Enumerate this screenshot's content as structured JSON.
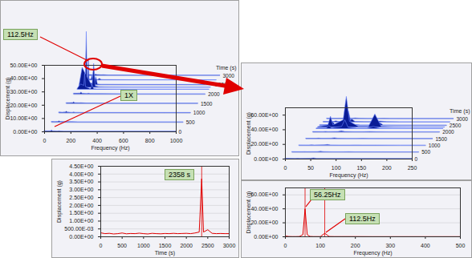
{
  "chart_data": [
    {
      "type": "waterfall",
      "x_label": "Frequency (Hz)",
      "y_label": "Displacement (g)",
      "time_label": "Time (s)",
      "color": "#0a1c96",
      "x": [
        0,
        25,
        50,
        56.25,
        62.5,
        100,
        112.5,
        125,
        150,
        200,
        400,
        600,
        800,
        1000
      ],
      "slices": [
        {
          "time": 3000,
          "values": [
            0.6,
            0.5,
            0.6,
            0.9,
            0.6,
            0.4,
            0.5,
            0.4,
            0.3,
            0.3,
            0.2,
            0.2,
            0.2,
            0.2
          ]
        },
        {
          "time": 2750,
          "values": [
            0.6,
            0.6,
            0.8,
            4,
            0.7,
            0.4,
            1.2,
            0.4,
            0.3,
            0.3,
            0.2,
            0.2,
            0.2,
            0.2
          ]
        },
        {
          "time": 2500,
          "values": [
            0.7,
            3,
            2,
            20,
            1.5,
            0.5,
            6,
            0.5,
            0.3,
            0.3,
            0.2,
            0.2,
            0.2,
            0.2
          ]
        },
        {
          "time": 2358,
          "values": [
            0.8,
            15,
            10,
            42,
            8,
            1,
            18,
            1,
            0.4,
            0.3,
            0.2,
            0.2,
            0.2,
            0.2
          ]
        },
        {
          "time": 2250,
          "values": [
            0.7,
            4,
            3,
            12,
            2,
            0.5,
            3,
            0.5,
            0.3,
            0.3,
            0.2,
            0.2,
            0.2,
            0.2
          ]
        },
        {
          "time": 2000,
          "values": [
            0.6,
            0.6,
            0.7,
            1.5,
            0.6,
            0.4,
            0.6,
            0.4,
            0.3,
            0.3,
            0.2,
            0.2,
            0.2,
            0.2
          ]
        },
        {
          "time": 1500,
          "values": [
            0.5,
            0.5,
            0.6,
            1.2,
            0.5,
            0.4,
            0.5,
            0.4,
            0.3,
            0.3,
            0.2,
            0.2,
            0.2,
            0.2
          ]
        },
        {
          "time": 1000,
          "values": [
            0.5,
            0.4,
            0.6,
            1.1,
            0.5,
            0.3,
            0.5,
            0.3,
            0.3,
            0.2,
            0.2,
            0.2,
            0.2,
            0.2
          ]
        },
        {
          "time": 500,
          "values": [
            0.5,
            0.4,
            0.5,
            1,
            0.5,
            0.3,
            0.4,
            0.3,
            0.3,
            0.2,
            0.2,
            0.2,
            0.2,
            0.2
          ]
        },
        {
          "time": 0,
          "values": [
            0.5,
            0.4,
            0.5,
            1,
            0.4,
            0.3,
            0.4,
            0.3,
            0.2,
            0.2,
            0.2,
            0.2,
            0.2,
            0.2
          ]
        }
      ],
      "xlim": [
        0,
        1000
      ],
      "xticks": [
        0,
        200,
        400,
        600,
        800,
        1000
      ],
      "ylim": [
        0,
        50
      ],
      "yticks": [
        {
          "value": 0,
          "label": "0.00E+00"
        },
        {
          "value": 10,
          "label": "10.00E+00"
        },
        {
          "value": 20,
          "label": "20.00E+00"
        },
        {
          "value": 30,
          "label": "30.00E+00"
        },
        {
          "value": 40,
          "label": "40.00E+00"
        },
        {
          "value": 50,
          "label": "50.00E+00"
        }
      ],
      "time_ticks": [
        0,
        500,
        1000,
        1500,
        2000,
        2500,
        3000
      ],
      "annotations": [
        {
          "text": "112.5Hz"
        },
        {
          "text": "1X"
        }
      ]
    },
    {
      "type": "waterfall",
      "x_label": "Frequency (Hz)",
      "y_label": "Displacement (g)",
      "time_label": "Time (s)",
      "color": "#0a1c96",
      "x": [
        0,
        20,
        25,
        30,
        50,
        56.25,
        62.5,
        80,
        100,
        112.5,
        125,
        150,
        200,
        250
      ],
      "slices": [
        {
          "time": 3000,
          "values": [
            0.6,
            0.5,
            0.6,
            0.5,
            0.6,
            0.9,
            0.6,
            0.4,
            0.4,
            0.5,
            0.4,
            0.3,
            0.3,
            0.3
          ]
        },
        {
          "time": 2750,
          "values": [
            0.6,
            0.6,
            1.5,
            0.6,
            0.8,
            4,
            0.7,
            0.4,
            0.4,
            1.2,
            0.4,
            0.3,
            0.3,
            0.3
          ]
        },
        {
          "time": 2500,
          "values": [
            0.7,
            1,
            5,
            1,
            2,
            20,
            1.5,
            0.5,
            0.5,
            6,
            0.5,
            0.3,
            0.3,
            0.3
          ]
        },
        {
          "time": 2358,
          "values": [
            0.8,
            3,
            15,
            3,
            10,
            42,
            8,
            1,
            1,
            18,
            1,
            0.4,
            0.3,
            0.3
          ]
        },
        {
          "time": 2250,
          "values": [
            0.7,
            1,
            4,
            1,
            3,
            12,
            2,
            0.5,
            0.5,
            3,
            0.5,
            0.3,
            0.3,
            0.3
          ]
        },
        {
          "time": 2000,
          "values": [
            0.6,
            0.5,
            0.8,
            0.5,
            0.7,
            1.5,
            0.6,
            0.4,
            0.4,
            0.6,
            0.4,
            0.3,
            0.3,
            0.3
          ]
        },
        {
          "time": 1500,
          "values": [
            0.5,
            0.5,
            0.7,
            0.5,
            0.6,
            1.2,
            0.5,
            0.4,
            0.4,
            0.5,
            0.4,
            0.3,
            0.3,
            0.3
          ]
        },
        {
          "time": 1000,
          "values": [
            0.5,
            0.4,
            0.6,
            0.4,
            0.6,
            1.1,
            0.5,
            0.3,
            0.3,
            0.5,
            0.3,
            0.3,
            0.2,
            0.2
          ]
        },
        {
          "time": 500,
          "values": [
            0.5,
            0.4,
            0.5,
            0.4,
            0.5,
            1,
            0.5,
            0.3,
            0.3,
            0.4,
            0.3,
            0.3,
            0.2,
            0.2
          ]
        },
        {
          "time": 0,
          "values": [
            0.5,
            0.4,
            0.5,
            0.4,
            0.5,
            1,
            0.4,
            0.3,
            0.3,
            0.4,
            0.3,
            0.2,
            0.2,
            0.2
          ]
        }
      ],
      "xlim": [
        0,
        250
      ],
      "xticks": [
        0,
        50,
        100,
        150,
        200,
        250
      ],
      "ylim": [
        0,
        70
      ],
      "yticks": [
        {
          "value": 0,
          "label": "0.00E+00"
        },
        {
          "value": 20,
          "label": "20.00E+00"
        },
        {
          "value": 40,
          "label": "40.00E+00"
        },
        {
          "value": 60,
          "label": "60.00E+00"
        }
      ],
      "time_ticks": [
        0,
        500,
        1000,
        1500,
        2000,
        2500,
        3000
      ]
    },
    {
      "type": "line",
      "x_label": "Time (s)",
      "y_label": "Displacement (g)",
      "color": "#e00000",
      "grid": true,
      "x": [
        0,
        100,
        200,
        300,
        400,
        500,
        600,
        700,
        800,
        900,
        1000,
        1100,
        1200,
        1300,
        1400,
        1500,
        1600,
        1700,
        1800,
        1900,
        2000,
        2100,
        2200,
        2300,
        2358,
        2400,
        2500,
        2600,
        2700,
        2800,
        2900,
        3000
      ],
      "values": [
        0.25,
        0.2,
        0.22,
        0.18,
        0.2,
        0.24,
        0.19,
        0.21,
        0.2,
        0.23,
        0.2,
        0.18,
        0.22,
        0.2,
        0.19,
        0.21,
        0.2,
        0.22,
        0.2,
        0.21,
        0.22,
        0.2,
        0.24,
        0.3,
        3.7,
        0.3,
        0.45,
        0.22,
        0.2,
        0.21,
        0.2,
        0.2
      ],
      "xlim": [
        0,
        3000
      ],
      "xticks": [
        0,
        500,
        1000,
        1500,
        2000,
        2500,
        3000
      ],
      "ylim": [
        0,
        4.5
      ],
      "yticks": [
        {
          "value": 0,
          "label": "0.00E+00"
        },
        {
          "value": 0.5,
          "label": "500.00E-03"
        },
        {
          "value": 1,
          "label": "1.00E+00"
        },
        {
          "value": 1.5,
          "label": "1.50E+00"
        },
        {
          "value": 2,
          "label": "2.00E+00"
        },
        {
          "value": 2.5,
          "label": "2.50E+00"
        },
        {
          "value": 3,
          "label": "3.00E+00"
        },
        {
          "value": 3.5,
          "label": "3.50E+00"
        },
        {
          "value": 4,
          "label": "4.00E+00"
        },
        {
          "value": 4.5,
          "label": "4.50E+00"
        }
      ],
      "cursors": [
        2358
      ],
      "annotations": [
        {
          "text": "2358 s"
        }
      ]
    },
    {
      "type": "line",
      "x_label": "Frequency (Hz)",
      "y_label": "Displacement (g)",
      "color": "#e00000",
      "grid": true,
      "x": [
        0,
        10,
        20,
        30,
        40,
        50,
        56.25,
        62.5,
        70,
        80,
        100,
        112.5,
        125,
        140,
        160,
        200,
        250,
        300,
        350,
        400,
        450,
        500
      ],
      "values": [
        1,
        0.4,
        0.3,
        0.3,
        0.4,
        3,
        40,
        3,
        0.5,
        0.3,
        0.3,
        5,
        0.4,
        0.3,
        0.3,
        0.3,
        0.2,
        0.2,
        0.2,
        0.2,
        0.2,
        0.2
      ],
      "xlim": [
        0,
        500
      ],
      "xticks": [
        0,
        100,
        200,
        300,
        400,
        500
      ],
      "ylim": [
        0,
        70
      ],
      "yticks": [
        {
          "value": 0,
          "label": "0.00E+00"
        },
        {
          "value": 20,
          "label": "20.00E+00"
        },
        {
          "value": 40,
          "label": "40.00E+00"
        },
        {
          "value": 60,
          "label": "60.00E+00"
        }
      ],
      "cursors": [
        56.25,
        112.5
      ],
      "annotations": [
        {
          "text": "56.25Hz"
        },
        {
          "text": "112.5Hz"
        }
      ]
    }
  ]
}
